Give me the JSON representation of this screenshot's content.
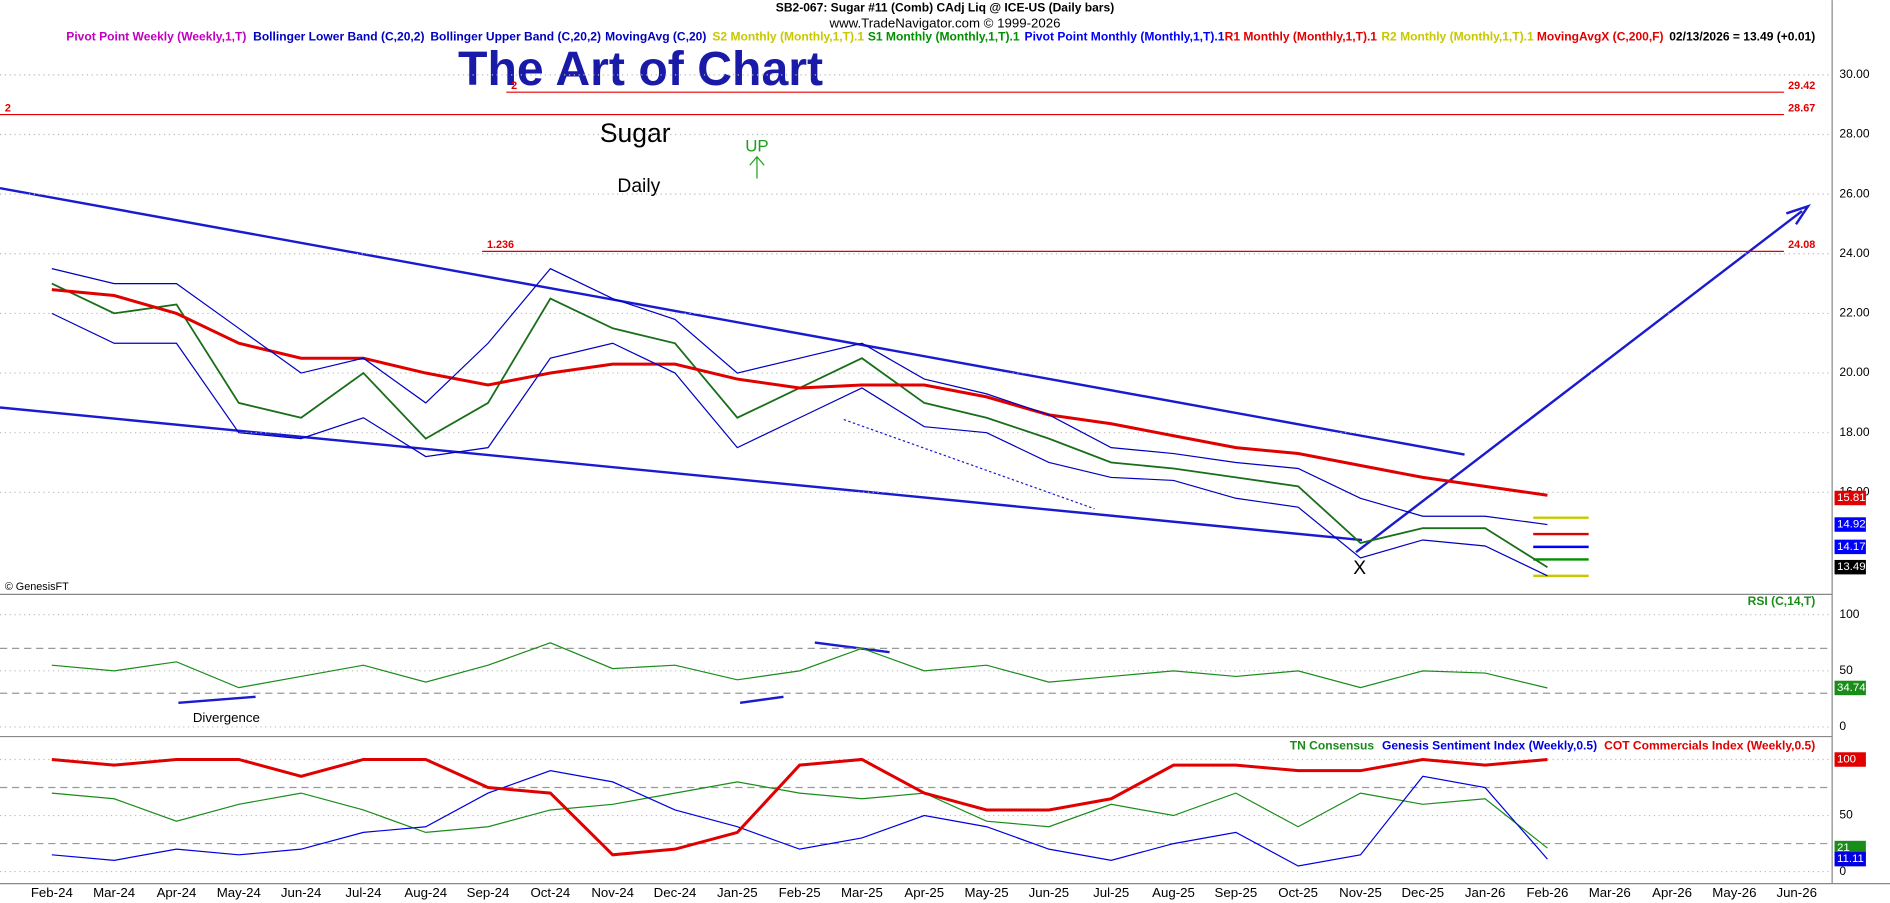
{
  "header": {
    "symbol": "SB2-067:  Sugar #11 (Comb) CAdj Liq @ ICE-US  (Daily bars)",
    "site": "www.TradeNavigator.com © 1999-2026",
    "quote": "02/13/2026 = 13.49 (+0.01)"
  },
  "legend": [
    {
      "text": "Pivot Point Weekly (Weekly,1,T)",
      "color": "#c000c0"
    },
    {
      "text": "Bollinger Lower Band (C,20,2)",
      "color": "#0000c0"
    },
    {
      "text": "Bollinger Upper Band (C,20,2)",
      "color": "#0000c0"
    },
    {
      "text": "MovingAvg (C,20)",
      "color": "#0000c0"
    },
    {
      "text": "S2 Monthly (Monthly,1,T).1",
      "color": "#c8c800"
    },
    {
      "text": "S1 Monthly (Monthly,1,T).1",
      "color": "#009000"
    },
    {
      "text": "Pivot Point Monthly (Monthly,1,T).1",
      "color": "#0000ff"
    },
    {
      "text": "R1 Monthly (Monthly,1,T).1",
      "color": "#e00000"
    },
    {
      "text": "R2 Monthly (Monthly,1,T).1",
      "color": "#c8c800"
    },
    {
      "text": "MovingAvgX (C,200,F)",
      "color": "#e00000"
    }
  ],
  "annotations": {
    "title": "The Art of Chart",
    "commodity": "Sugar",
    "period": "Daily",
    "up": "UP",
    "x_mark": "X",
    "copyright": "© GenesisFT",
    "divergence": "Divergence"
  },
  "chart_data": [
    {
      "type": "line",
      "categories": [
        "Feb-24",
        "Mar-24",
        "Apr-24",
        "May-24",
        "Jun-24",
        "Jul-24",
        "Aug-24",
        "Sep-24",
        "Oct-24",
        "Nov-24",
        "Dec-24",
        "Jan-25",
        "Feb-25",
        "Mar-25",
        "Apr-25",
        "May-25",
        "Jun-25",
        "Jul-25",
        "Aug-25",
        "Sep-25",
        "Oct-25",
        "Nov-25",
        "Dec-25",
        "Jan-26",
        "Feb-26",
        "Mar-26",
        "Apr-26",
        "May-26",
        "Jun-26"
      ],
      "ylim": [
        12.7,
        31.7
      ],
      "yticks": [
        {
          "value": 16,
          "label": "16.00"
        },
        {
          "value": 18,
          "label": "18.00"
        },
        {
          "value": 20,
          "label": "20.00"
        },
        {
          "value": 22,
          "label": "22.00"
        },
        {
          "value": 24,
          "label": "24.00"
        },
        {
          "value": 26,
          "label": "26.00"
        },
        {
          "value": 28,
          "label": "28.00"
        },
        {
          "value": 30,
          "label": "30.00"
        }
      ],
      "grid": true,
      "series": [
        {
          "name": "Price",
          "color": "#1a6e1a",
          "values": [
            23.0,
            22.0,
            22.3,
            19.0,
            18.5,
            20.0,
            17.8,
            19.0,
            22.5,
            21.5,
            21.0,
            18.5,
            19.5,
            20.5,
            19.0,
            18.5,
            17.8,
            17.0,
            16.8,
            16.5,
            16.2,
            14.3,
            14.8,
            14.8,
            13.49,
            null,
            null,
            null,
            null
          ]
        },
        {
          "name": "MovingAvgX (C,200,F)",
          "color": "#e00000",
          "values": [
            22.8,
            22.6,
            22.0,
            21.0,
            20.5,
            20.5,
            20.0,
            19.6,
            20.0,
            20.3,
            20.3,
            19.8,
            19.5,
            19.6,
            19.6,
            19.2,
            18.6,
            18.3,
            17.9,
            17.5,
            17.3,
            16.9,
            16.5,
            16.2,
            15.9,
            null,
            null,
            null,
            null
          ]
        },
        {
          "name": "Bollinger Upper Band (C,20,2)",
          "color": "#0000c0",
          "values": [
            23.5,
            23,
            23,
            21.5,
            20,
            20.5,
            19,
            21,
            23.5,
            22.5,
            21.8,
            20,
            20.5,
            21,
            19.8,
            19.3,
            18.6,
            17.5,
            17.3,
            17,
            16.8,
            15.8,
            15.2,
            15.2,
            14.92,
            null,
            null,
            null,
            null
          ]
        },
        {
          "name": "Bollinger Lower Band (C,20,2)",
          "color": "#0000c0",
          "values": [
            22,
            21,
            21,
            18,
            17.8,
            18.5,
            17.2,
            17.5,
            20.5,
            21,
            20,
            17.5,
            18.5,
            19.5,
            18.2,
            18,
            17,
            16.5,
            16.4,
            15.8,
            15.5,
            13.8,
            14.4,
            14.2,
            13.2,
            null,
            null,
            null,
            null
          ]
        }
      ],
      "levels": [
        {
          "value": 29.42,
          "label": "2"
        },
        {
          "value": 28.67,
          "label": "2"
        },
        {
          "value": 24.08,
          "label": "1.236"
        }
      ],
      "pivots": [
        {
          "value": 15.15,
          "color": "#c8c800"
        },
        {
          "value": 14.6,
          "color": "#e00000"
        },
        {
          "value": 14.17,
          "color": "#0000ff"
        },
        {
          "value": 13.75,
          "color": "#009000"
        },
        {
          "value": 13.2,
          "color": "#c8c800"
        }
      ],
      "price_labels": [
        {
          "value": 15.81,
          "color": "#e00000"
        },
        {
          "value": 14.92,
          "color": "#0000ff"
        },
        {
          "value": 14.17,
          "color": "#0000ff"
        }
      ]
    },
    {
      "type": "line",
      "title": "RSI (C,14,T)",
      "ylim": [
        -7.5,
        116
      ],
      "yticks": [
        0,
        50,
        100
      ],
      "bands": [
        30,
        70
      ],
      "series": [
        {
          "name": "RSI",
          "color": "#1a8c1a",
          "values": [
            55,
            50,
            58,
            35,
            45,
            55,
            40,
            55,
            75,
            52,
            55,
            42,
            50,
            70,
            50,
            55,
            40,
            45,
            50,
            45,
            50,
            35,
            50,
            48,
            34.74,
            null,
            null,
            null,
            null
          ]
        }
      ]
    },
    {
      "type": "line",
      "ylim": [
        -10.75,
        119.4
      ],
      "yticks": [
        0,
        50,
        100
      ],
      "bands": [
        25,
        75
      ],
      "series": [
        {
          "name": "TN Consensus",
          "color": "#1a8c1a",
          "values": [
            70,
            65,
            45,
            60,
            70,
            55,
            35,
            40,
            55,
            60,
            70,
            80,
            70,
            65,
            70,
            45,
            40,
            60,
            50,
            70,
            40,
            70,
            60,
            65,
            21,
            null,
            null,
            null,
            null
          ]
        },
        {
          "name": "Genesis Sentiment Index (Weekly,0.5)",
          "color": "#0000e0",
          "values": [
            15,
            10,
            20,
            15,
            20,
            35,
            40,
            70,
            90,
            80,
            55,
            40,
            20,
            30,
            50,
            40,
            20,
            10,
            25,
            35,
            5,
            15,
            85,
            75,
            11.11,
            null,
            null,
            null,
            null
          ]
        },
        {
          "name": "COT Commercials Index (Weekly,0.5)",
          "color": "#e00000",
          "values": [
            100,
            95,
            100,
            100,
            85,
            100,
            100,
            75,
            70,
            15,
            20,
            35,
            95,
            100,
            70,
            55,
            55,
            65,
            95,
            95,
            90,
            90,
            100,
            95,
            100,
            null,
            null,
            null,
            null
          ]
        }
      ]
    }
  ]
}
